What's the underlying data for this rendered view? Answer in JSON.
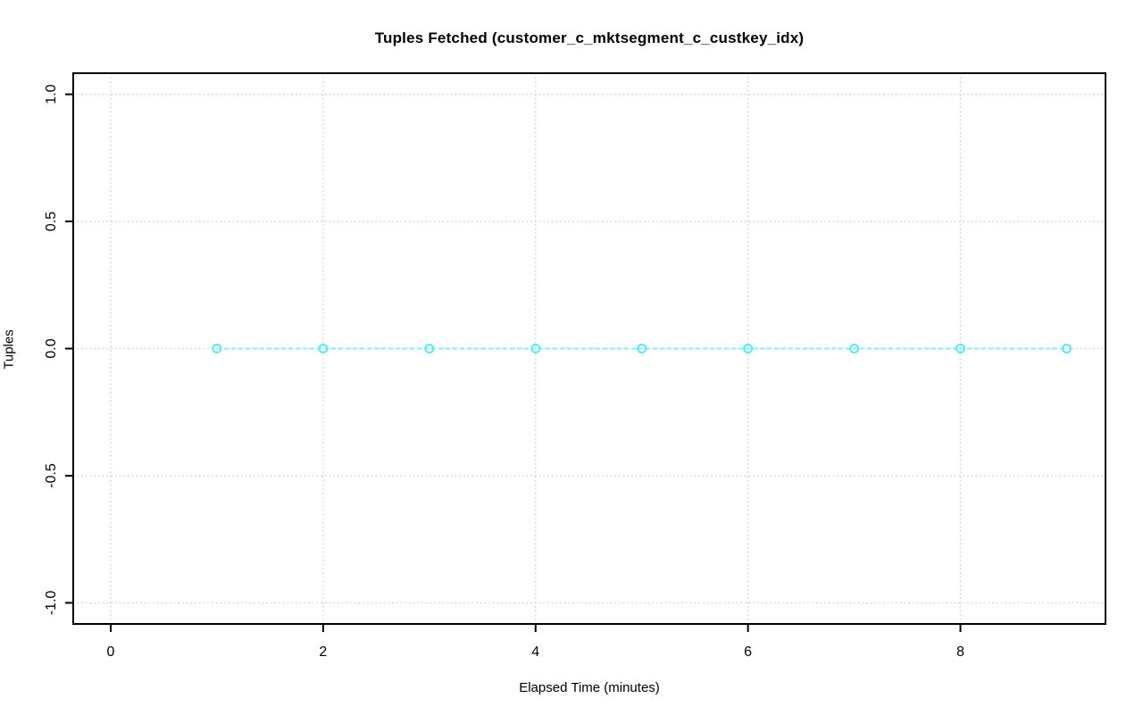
{
  "chart_data": {
    "type": "line",
    "title": "Tuples Fetched (customer_c_mktsegment_c_custkey_idx)",
    "xlabel": "Elapsed Time (minutes)",
    "ylabel": "Tuples",
    "x": [
      1,
      2,
      3,
      4,
      5,
      6,
      7,
      8,
      9
    ],
    "y": [
      0,
      0,
      0,
      0,
      0,
      0,
      0,
      0,
      0
    ],
    "xlim": [
      -0.353,
      9.366
    ],
    "ylim": [
      -1.083,
      1.083
    ],
    "x_ticks": [
      0,
      2,
      4,
      6,
      8
    ],
    "x_tick_labels": [
      "0",
      "2",
      "4",
      "6",
      "8"
    ],
    "y_ticks": [
      -1.0,
      -0.5,
      0.0,
      0.5,
      1.0
    ],
    "y_tick_labels": [
      "-1.0",
      "-0.5",
      "0.0",
      "0.5",
      "1.0"
    ],
    "grid": true,
    "legend": "none",
    "line_style": "dashed",
    "marker": "open-circle",
    "colors": {
      "line": "#7EF2F6",
      "marker": "#55EBF2",
      "grid": "#CBCBCB",
      "axis": "#000000",
      "background": "#FFFFFF"
    }
  }
}
